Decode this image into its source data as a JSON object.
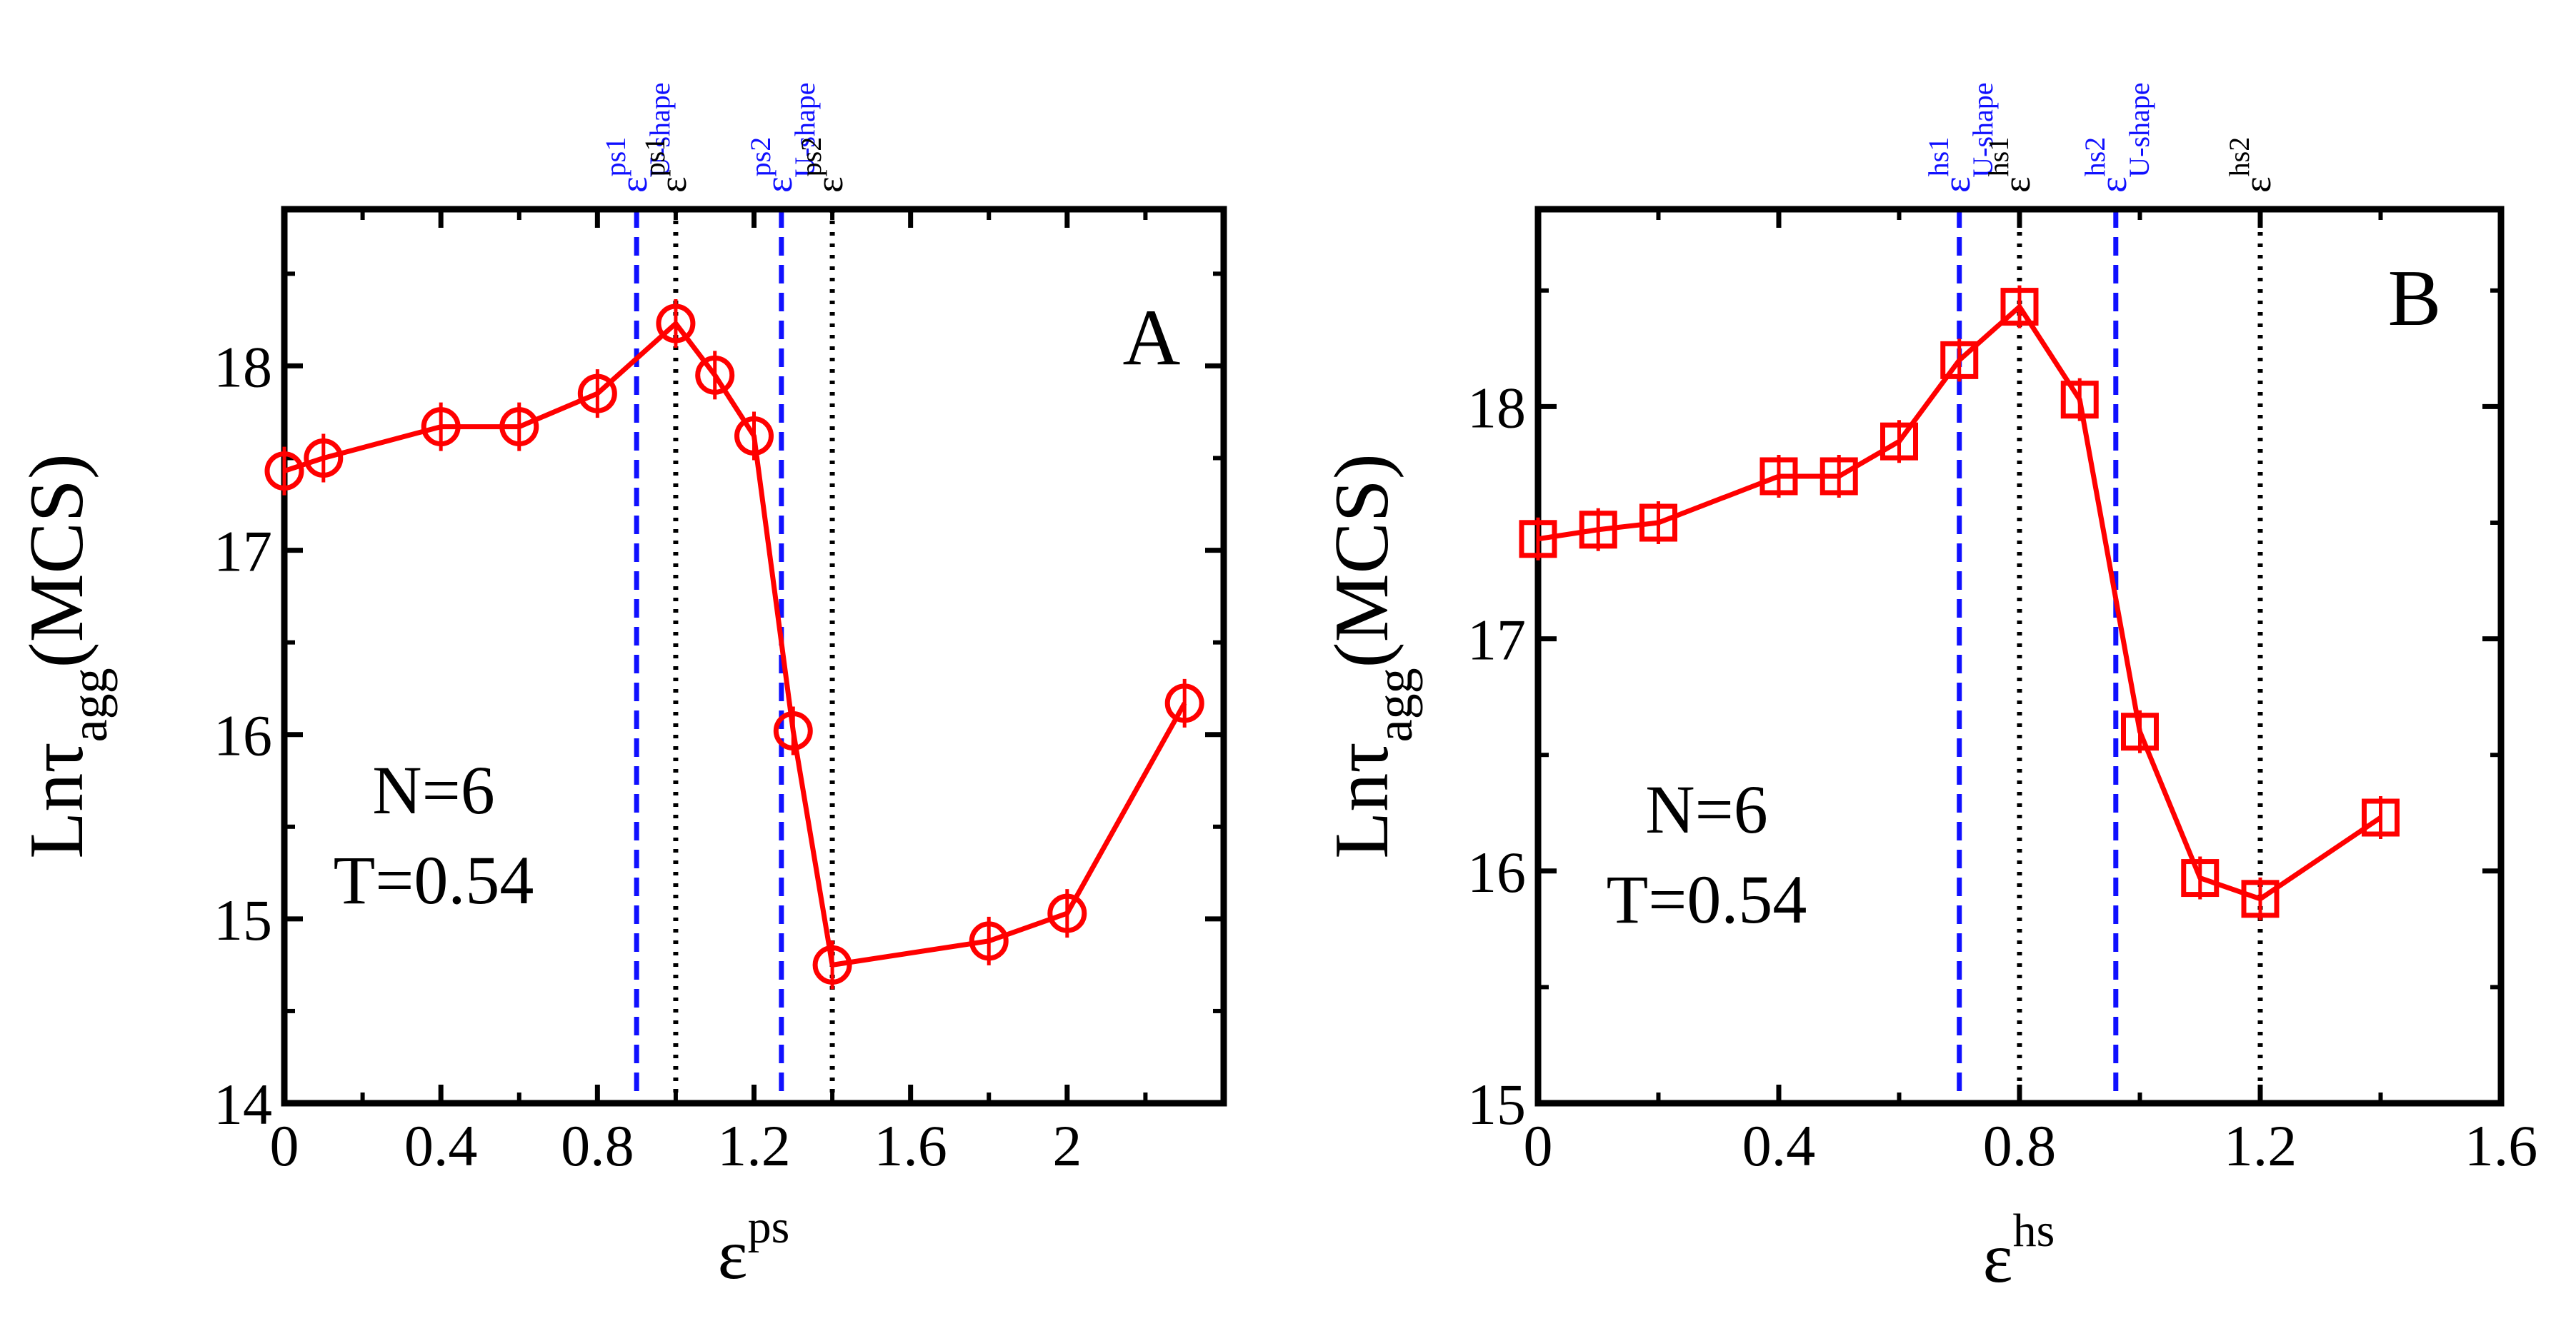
{
  "chart_data": [
    {
      "type": "line",
      "panel_label": "A",
      "xlabel": {
        "base": "ε",
        "sup": "ps"
      },
      "ylabel": {
        "base": "Lnτ",
        "sub": "agg",
        "unit": "(MCS)"
      },
      "xlim": [
        0,
        2.4
      ],
      "ylim": [
        14,
        18.85
      ],
      "xticks": [
        0,
        0.4,
        0.8,
        1.2,
        1.6,
        2
      ],
      "xtick_labels": [
        "0",
        "0.4",
        "0.8",
        "1.2",
        "1.6",
        "2"
      ],
      "xminor": [
        0.2,
        0.6,
        1.0,
        1.4,
        1.8,
        2.2
      ],
      "yticks": [
        14,
        15,
        16,
        17,
        18
      ],
      "ytick_labels": [
        "14",
        "15",
        "16",
        "17",
        "18"
      ],
      "yminor": [
        14.5,
        15.5,
        16.5,
        17.5,
        18.5
      ],
      "annotation": [
        "N=6",
        "T=0.54"
      ],
      "marker": "circle",
      "color": "#ff0000",
      "series": [
        {
          "name": "Lnτagg",
          "x": [
            0,
            0.1,
            0.4,
            0.6,
            0.8,
            1.0,
            1.1,
            1.2,
            1.3,
            1.4,
            1.8,
            2.0,
            2.3
          ],
          "y": [
            17.43,
            17.5,
            17.67,
            17.67,
            17.85,
            18.23,
            17.95,
            17.62,
            16.02,
            14.75,
            14.88,
            15.03,
            16.17
          ]
        }
      ],
      "vlines": [
        {
          "x": 0.9,
          "style": "dashed",
          "color": "#1010ff",
          "label": {
            "base": "ε",
            "sup": "ps1",
            "sub": "U-shape"
          }
        },
        {
          "x": 1.0,
          "style": "dotted",
          "color": "#000000",
          "label": {
            "base": "ε",
            "sup": "ps1",
            "sub": ""
          }
        },
        {
          "x": 1.27,
          "style": "dashed",
          "color": "#1010ff",
          "label": {
            "base": "ε",
            "sup": "ps2",
            "sub": "U-shape"
          }
        },
        {
          "x": 1.4,
          "style": "dotted",
          "color": "#000000",
          "label": {
            "base": "ε",
            "sup": "ps2",
            "sub": ""
          }
        }
      ]
    },
    {
      "type": "line",
      "panel_label": "B",
      "xlabel": {
        "base": "ε",
        "sup": "hs"
      },
      "ylabel": {
        "base": "Lnτ",
        "sub": "agg",
        "unit": "(MCS)"
      },
      "xlim": [
        0,
        1.6
      ],
      "ylim": [
        15,
        18.85
      ],
      "xticks": [
        0,
        0.4,
        0.8,
        1.2,
        1.6
      ],
      "xtick_labels": [
        "0",
        "0.4",
        "0.8",
        "1.2",
        "1.6"
      ],
      "xminor": [
        0.2,
        0.6,
        1.0,
        1.4
      ],
      "yticks": [
        15,
        16,
        17,
        18
      ],
      "ytick_labels": [
        "15",
        "16",
        "17",
        "18"
      ],
      "yminor": [
        15.5,
        16.5,
        17.5,
        18.5
      ],
      "annotation": [
        "N=6",
        "T=0.54"
      ],
      "marker": "square",
      "color": "#ff0000",
      "series": [
        {
          "name": "Lnτagg",
          "x": [
            0,
            0.1,
            0.2,
            0.4,
            0.5,
            0.6,
            0.7,
            0.8,
            0.9,
            1.0,
            1.1,
            1.2,
            1.4
          ],
          "y": [
            17.43,
            17.47,
            17.5,
            17.7,
            17.7,
            17.85,
            18.2,
            18.43,
            18.03,
            16.6,
            15.97,
            15.88,
            16.23
          ]
        }
      ],
      "vlines": [
        {
          "x": 0.7,
          "style": "dashed",
          "color": "#1010ff",
          "label": {
            "base": "ε",
            "sup": "hs1",
            "sub": "U-shape"
          }
        },
        {
          "x": 0.8,
          "style": "dotted",
          "color": "#000000",
          "label": {
            "base": "ε",
            "sup": "hs1",
            "sub": ""
          }
        },
        {
          "x": 0.96,
          "style": "dashed",
          "color": "#1010ff",
          "label": {
            "base": "ε",
            "sup": "hs2",
            "sub": "U-shape"
          }
        },
        {
          "x": 1.2,
          "style": "dotted",
          "color": "#000000",
          "label": {
            "base": "ε",
            "sup": "hs2",
            "sub": ""
          }
        }
      ]
    }
  ]
}
